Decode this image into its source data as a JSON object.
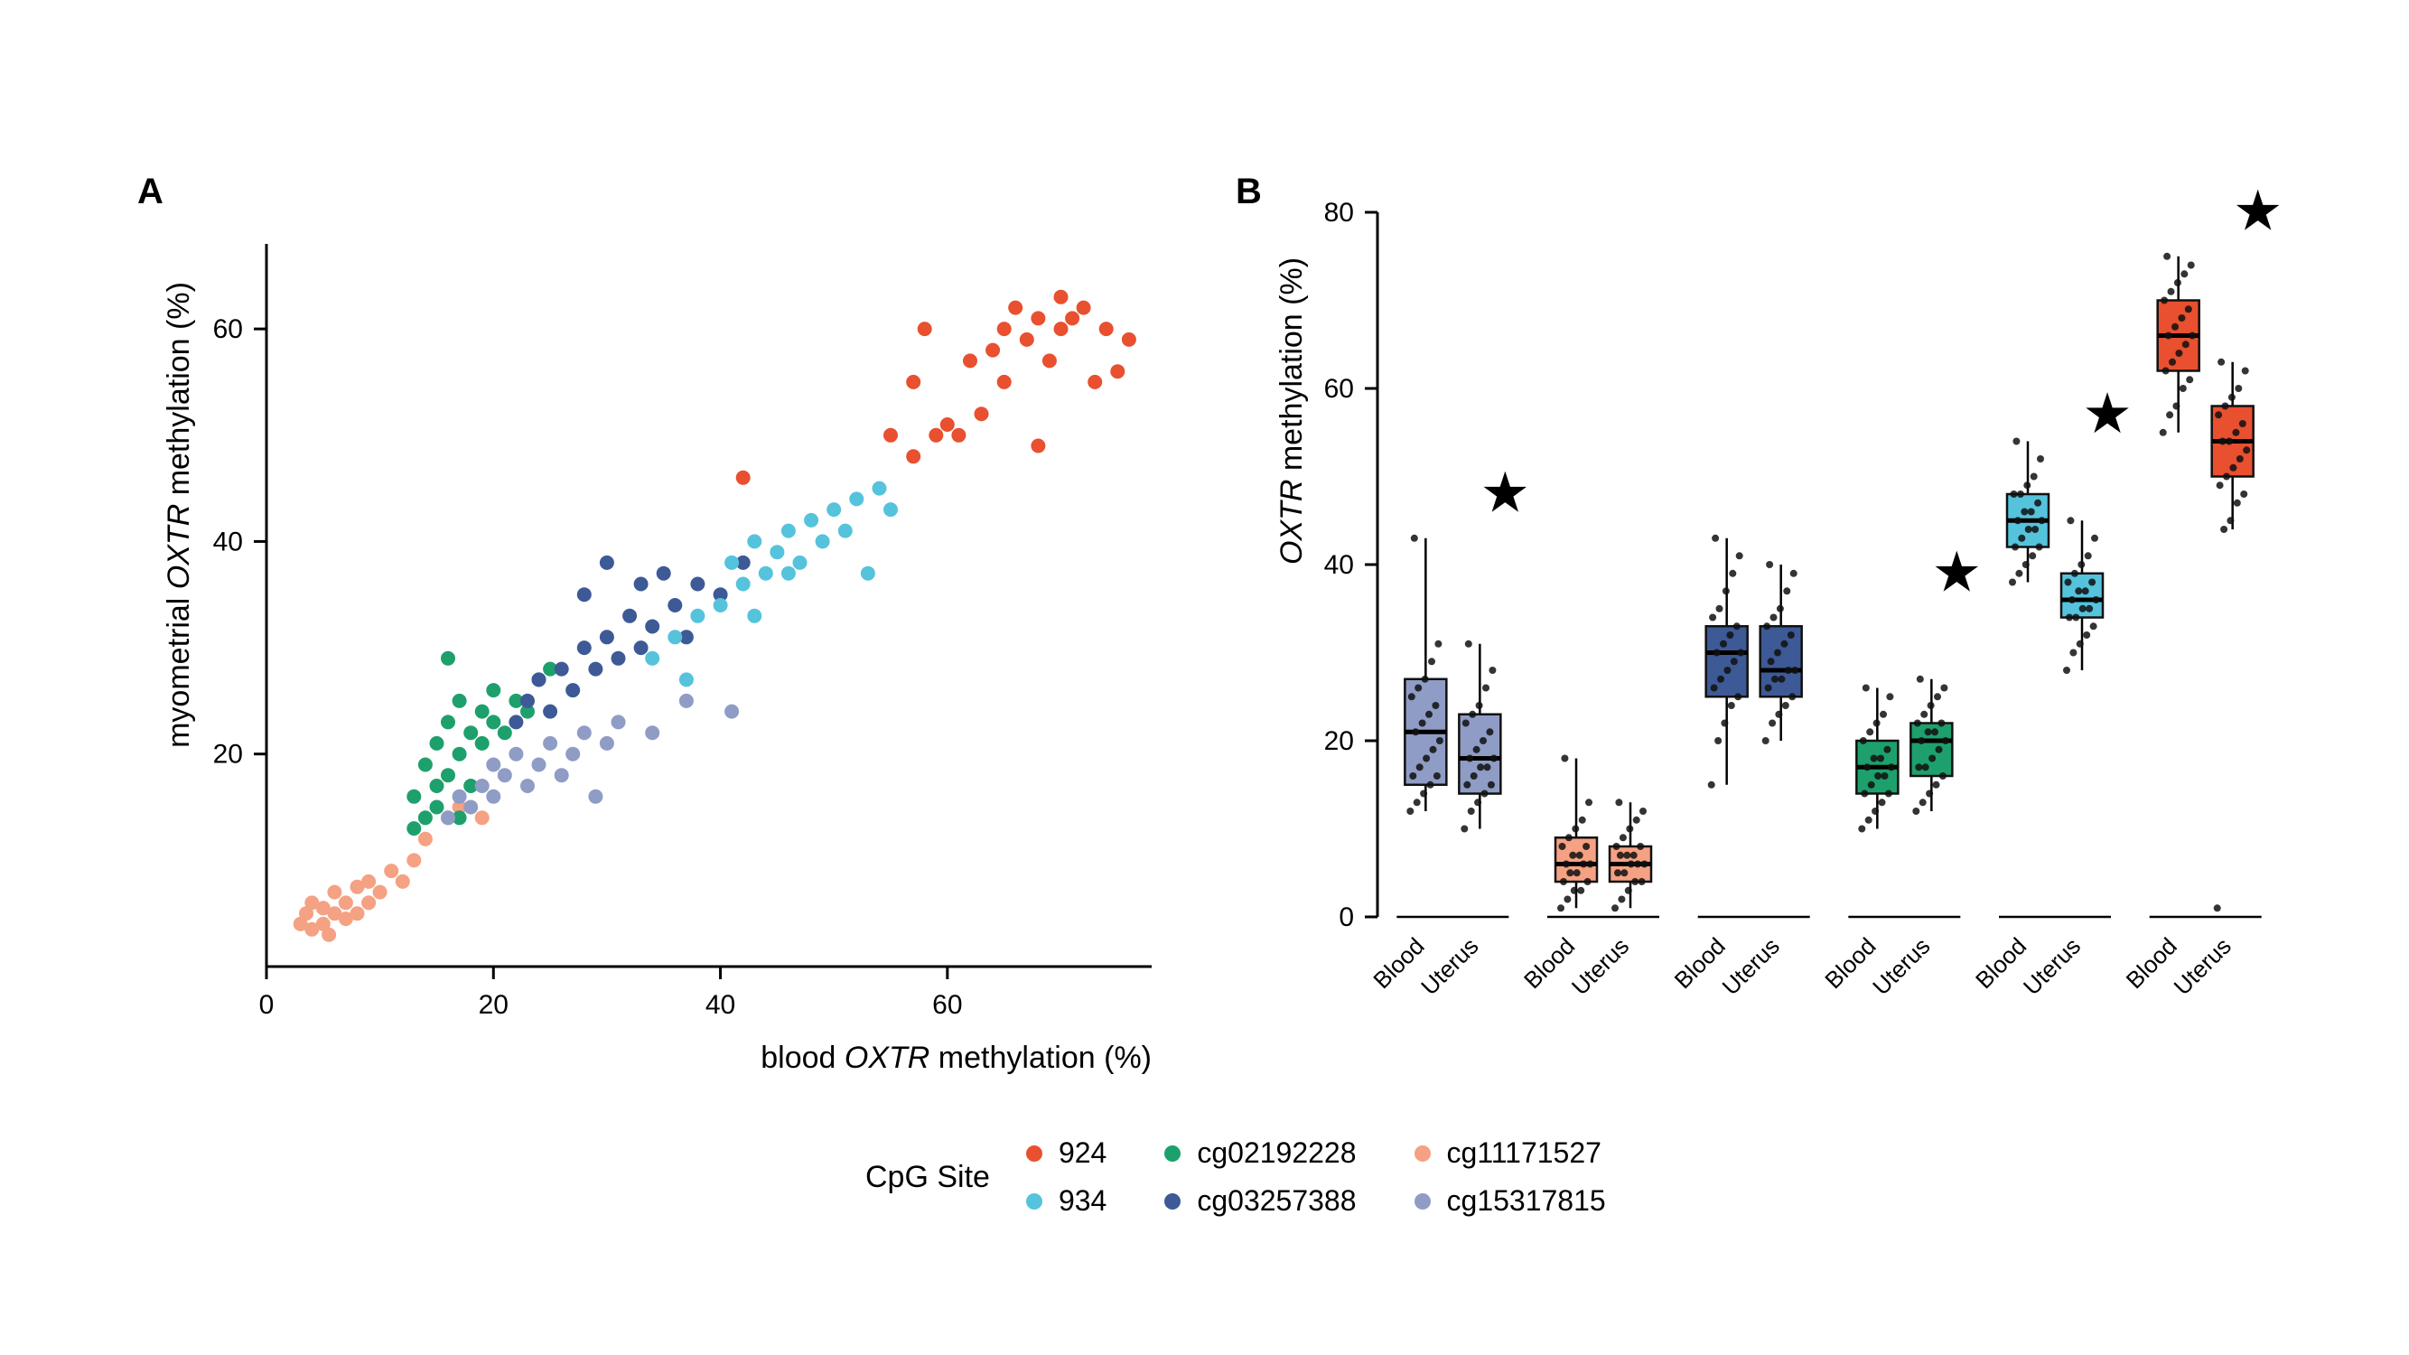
{
  "figure": {
    "panel_a_label": "A",
    "panel_b_label": "B"
  },
  "colors": {
    "924": "#e8502f",
    "934": "#55c3dc",
    "cg02192228": "#1ea06d",
    "cg03257388": "#3d5a96",
    "cg11171527": "#f5a183",
    "cg15317815": "#8f9cc5",
    "axis": "#000000",
    "point": "#111111",
    "star": "#000000",
    "background": "#ffffff"
  },
  "legend": {
    "title": "CpG Site",
    "columns": [
      [
        "924",
        "934"
      ],
      [
        "cg02192228",
        "cg03257388"
      ],
      [
        "cg11171527",
        "cg15317815"
      ]
    ]
  },
  "chart_data": [
    {
      "type": "scatter",
      "panel": "A",
      "xlabel": {
        "prefix": "blood ",
        "italic": "OXTR",
        "suffix": " methylation (%)"
      },
      "ylabel": {
        "prefix": "myometrial ",
        "italic": "OXTR",
        "suffix": " methylation (%)"
      },
      "xlim": [
        0,
        78
      ],
      "ylim": [
        0,
        68
      ],
      "xticks": [
        0,
        20,
        40,
        60
      ],
      "yticks": [
        20,
        40,
        60
      ],
      "grid": false,
      "series": [
        {
          "name": "cg11171527",
          "points": [
            [
              3,
              4
            ],
            [
              3.5,
              5
            ],
            [
              4,
              3.5
            ],
            [
              4,
              6
            ],
            [
              5,
              4
            ],
            [
              5,
              5.5
            ],
            [
              5.5,
              3
            ],
            [
              6,
              5
            ],
            [
              6,
              7
            ],
            [
              7,
              4.5
            ],
            [
              7,
              6
            ],
            [
              8,
              5
            ],
            [
              8,
              7.5
            ],
            [
              9,
              6
            ],
            [
              9,
              8
            ],
            [
              10,
              7
            ],
            [
              11,
              9
            ],
            [
              12,
              8
            ],
            [
              13,
              10
            ],
            [
              14,
              12
            ],
            [
              16,
              14
            ],
            [
              17,
              15
            ],
            [
              19,
              14
            ]
          ]
        },
        {
          "name": "cg02192228",
          "points": [
            [
              13,
              13
            ],
            [
              13,
              16
            ],
            [
              14,
              14
            ],
            [
              14,
              19
            ],
            [
              15,
              15
            ],
            [
              15,
              21
            ],
            [
              15,
              17
            ],
            [
              16,
              18
            ],
            [
              16,
              23
            ],
            [
              16,
              29
            ],
            [
              17,
              20
            ],
            [
              17,
              25
            ],
            [
              17,
              14
            ],
            [
              18,
              22
            ],
            [
              18,
              17
            ],
            [
              19,
              24
            ],
            [
              19,
              21
            ],
            [
              20,
              23
            ],
            [
              20,
              26
            ],
            [
              21,
              22
            ],
            [
              22,
              25
            ],
            [
              23,
              24
            ],
            [
              24,
              27
            ],
            [
              25,
              28
            ]
          ]
        },
        {
          "name": "cg15317815",
          "points": [
            [
              16,
              14
            ],
            [
              17,
              16
            ],
            [
              18,
              15
            ],
            [
              19,
              17
            ],
            [
              20,
              16
            ],
            [
              20,
              19
            ],
            [
              21,
              18
            ],
            [
              22,
              20
            ],
            [
              23,
              17
            ],
            [
              24,
              19
            ],
            [
              25,
              21
            ],
            [
              26,
              18
            ],
            [
              27,
              20
            ],
            [
              28,
              22
            ],
            [
              29,
              16
            ],
            [
              30,
              21
            ],
            [
              31,
              23
            ],
            [
              34,
              22
            ],
            [
              37,
              25
            ],
            [
              41,
              24
            ]
          ]
        },
        {
          "name": "cg03257388",
          "points": [
            [
              22,
              23
            ],
            [
              23,
              25
            ],
            [
              24,
              27
            ],
            [
              25,
              24
            ],
            [
              26,
              28
            ],
            [
              27,
              26
            ],
            [
              28,
              30
            ],
            [
              28,
              35
            ],
            [
              29,
              28
            ],
            [
              30,
              31
            ],
            [
              30,
              38
            ],
            [
              31,
              29
            ],
            [
              32,
              33
            ],
            [
              33,
              36
            ],
            [
              33,
              30
            ],
            [
              34,
              32
            ],
            [
              35,
              37
            ],
            [
              36,
              34
            ],
            [
              37,
              31
            ],
            [
              38,
              36
            ],
            [
              40,
              35
            ],
            [
              42,
              38
            ]
          ]
        },
        {
          "name": "934",
          "points": [
            [
              34,
              29
            ],
            [
              36,
              31
            ],
            [
              37,
              27
            ],
            [
              38,
              33
            ],
            [
              40,
              34
            ],
            [
              41,
              38
            ],
            [
              42,
              36
            ],
            [
              43,
              40
            ],
            [
              43,
              33
            ],
            [
              44,
              37
            ],
            [
              45,
              39
            ],
            [
              46,
              41
            ],
            [
              46,
              37
            ],
            [
              47,
              38
            ],
            [
              48,
              42
            ],
            [
              49,
              40
            ],
            [
              50,
              43
            ],
            [
              51,
              41
            ],
            [
              52,
              44
            ],
            [
              53,
              37
            ],
            [
              54,
              45
            ],
            [
              55,
              43
            ]
          ]
        },
        {
          "name": "924",
          "points": [
            [
              42,
              46
            ],
            [
              55,
              50
            ],
            [
              57,
              48
            ],
            [
              57,
              55
            ],
            [
              58,
              60
            ],
            [
              59,
              50
            ],
            [
              60,
              51
            ],
            [
              61,
              50
            ],
            [
              62,
              57
            ],
            [
              63,
              52
            ],
            [
              64,
              58
            ],
            [
              65,
              60
            ],
            [
              65,
              55
            ],
            [
              66,
              62
            ],
            [
              67,
              59
            ],
            [
              68,
              61
            ],
            [
              68,
              49
            ],
            [
              69,
              57
            ],
            [
              70,
              63
            ],
            [
              70,
              60
            ],
            [
              71,
              61
            ],
            [
              72,
              62
            ],
            [
              73,
              55
            ],
            [
              74,
              60
            ],
            [
              75,
              56
            ],
            [
              76,
              59
            ]
          ]
        }
      ]
    },
    {
      "type": "boxplot",
      "panel": "B",
      "ylabel": {
        "prefix": "",
        "italic": "OXTR",
        "suffix": " methylation (%)"
      },
      "ylim": [
        0,
        80
      ],
      "yticks": [
        0,
        20,
        40,
        60,
        80
      ],
      "condition_labels": [
        "Blood",
        "Uterus"
      ],
      "groups": [
        {
          "name": "cg15317815",
          "star_y": 46,
          "boxes": [
            {
              "label": "Blood",
              "whisker_low": 12,
              "q1": 15,
              "median": 21,
              "q3": 27,
              "whisker_high": 43,
              "points": [
                12,
                13,
                14,
                15,
                16,
                16,
                17,
                18,
                19,
                20,
                21,
                22,
                23,
                24,
                25,
                26,
                27,
                29,
                31,
                43
              ]
            },
            {
              "label": "Uterus",
              "whisker_low": 10,
              "q1": 14,
              "median": 18,
              "q3": 23,
              "whisker_high": 31,
              "points": [
                10,
                12,
                13,
                14,
                15,
                15,
                16,
                17,
                17,
                18,
                18,
                19,
                20,
                21,
                22,
                23,
                24,
                26,
                28,
                31
              ]
            }
          ]
        },
        {
          "name": "cg11171527",
          "star_y": null,
          "boxes": [
            {
              "label": "Blood",
              "whisker_low": 1,
              "q1": 4,
              "median": 6,
              "q3": 9,
              "whisker_high": 18,
              "points": [
                1,
                2,
                3,
                3,
                4,
                4,
                5,
                5,
                6,
                6,
                6,
                7,
                7,
                8,
                8,
                9,
                10,
                11,
                13,
                18
              ]
            },
            {
              "label": "Uterus",
              "whisker_low": 1,
              "q1": 4,
              "median": 6,
              "q3": 8,
              "whisker_high": 13,
              "points": [
                1,
                2,
                3,
                4,
                4,
                5,
                5,
                6,
                6,
                6,
                7,
                7,
                7,
                8,
                8,
                9,
                10,
                11,
                12,
                13
              ]
            }
          ]
        },
        {
          "name": "cg03257388",
          "star_y": null,
          "boxes": [
            {
              "label": "Blood",
              "whisker_low": 15,
              "q1": 25,
              "median": 30,
              "q3": 33,
              "whisker_high": 43,
              "points": [
                15,
                20,
                22,
                24,
                25,
                26,
                27,
                28,
                29,
                30,
                30,
                31,
                32,
                33,
                34,
                35,
                37,
                39,
                41,
                43
              ]
            },
            {
              "label": "Uterus",
              "whisker_low": 20,
              "q1": 25,
              "median": 28,
              "q3": 33,
              "whisker_high": 40,
              "points": [
                20,
                22,
                23,
                24,
                25,
                26,
                27,
                27,
                28,
                28,
                29,
                30,
                31,
                32,
                33,
                34,
                35,
                37,
                39,
                40
              ]
            }
          ]
        },
        {
          "name": "cg02192228",
          "star_y": 37,
          "boxes": [
            {
              "label": "Blood",
              "whisker_low": 10,
              "q1": 14,
              "median": 17,
              "q3": 20,
              "whisker_high": 26,
              "points": [
                10,
                11,
                12,
                13,
                14,
                14,
                15,
                16,
                16,
                17,
                17,
                18,
                18,
                19,
                20,
                21,
                22,
                23,
                25,
                26
              ]
            },
            {
              "label": "Uterus",
              "whisker_low": 12,
              "q1": 16,
              "median": 20,
              "q3": 22,
              "whisker_high": 27,
              "points": [
                12,
                13,
                14,
                15,
                16,
                17,
                17,
                18,
                19,
                20,
                20,
                21,
                21,
                22,
                22,
                23,
                24,
                25,
                26,
                27
              ]
            }
          ]
        },
        {
          "name": "934",
          "star_y": 55,
          "boxes": [
            {
              "label": "Blood",
              "whisker_low": 38,
              "q1": 42,
              "median": 45,
              "q3": 48,
              "whisker_high": 54,
              "points": [
                38,
                39,
                40,
                41,
                42,
                42,
                43,
                44,
                44,
                45,
                45,
                46,
                46,
                47,
                48,
                48,
                49,
                50,
                52,
                54
              ]
            },
            {
              "label": "Uterus",
              "whisker_low": 28,
              "q1": 34,
              "median": 36,
              "q3": 39,
              "whisker_high": 45,
              "points": [
                28,
                30,
                31,
                32,
                33,
                34,
                34,
                35,
                35,
                36,
                36,
                37,
                37,
                38,
                38,
                39,
                40,
                41,
                43,
                45
              ]
            }
          ]
        },
        {
          "name": "924",
          "star_y": 78,
          "boxes": [
            {
              "label": "Blood",
              "whisker_low": 55,
              "q1": 62,
              "median": 66,
              "q3": 70,
              "whisker_high": 75,
              "points": [
                55,
                57,
                58,
                60,
                61,
                62,
                63,
                64,
                65,
                66,
                66,
                67,
                68,
                69,
                70,
                71,
                72,
                73,
                74,
                75
              ]
            },
            {
              "label": "Uterus",
              "whisker_low": 44,
              "q1": 50,
              "median": 54,
              "q3": 58,
              "whisker_high": 63,
              "points": [
                1,
                44,
                45,
                47,
                48,
                49,
                50,
                51,
                52,
                53,
                54,
                54,
                55,
                56,
                57,
                58,
                59,
                60,
                62,
                63
              ]
            }
          ]
        }
      ]
    }
  ]
}
